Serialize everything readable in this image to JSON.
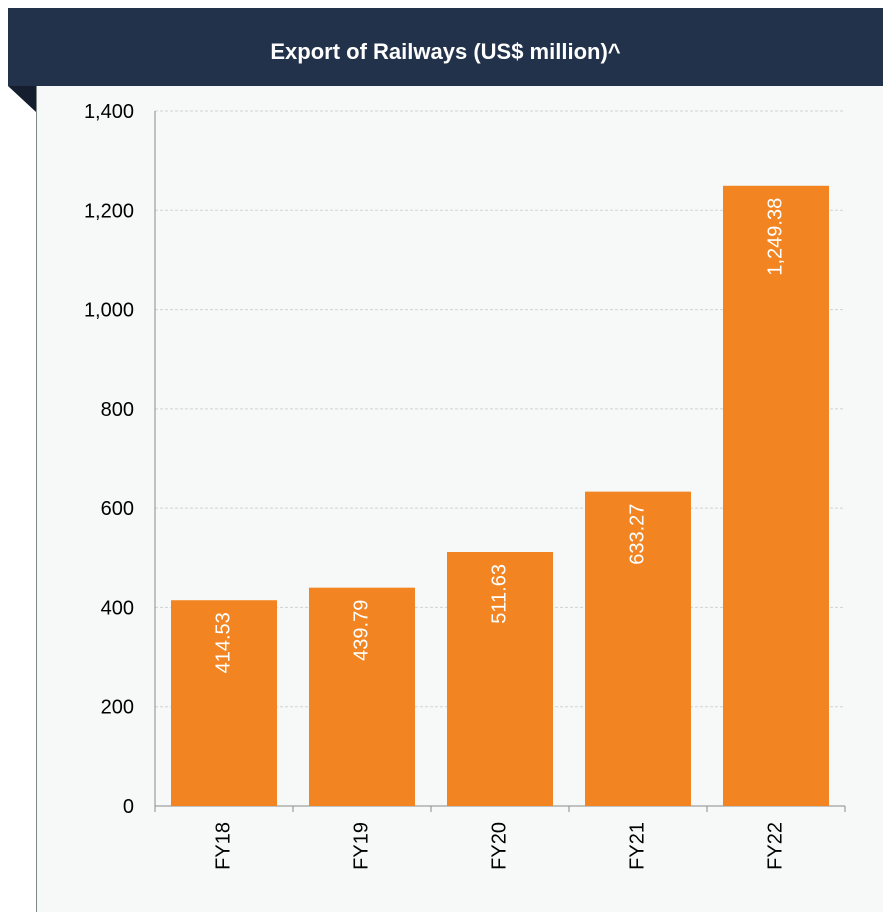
{
  "header": {
    "title": "Export of Railways (US$ million)^"
  },
  "colors": {
    "header_bg": "#22324a",
    "bar": "#f28522",
    "panel_bg": "#f6f9f8",
    "grid": "#cfd4d2"
  },
  "chart_data": {
    "type": "bar",
    "title": "Export of Railways (US$ million)^",
    "xlabel": "",
    "ylabel": "",
    "categories": [
      "FY18",
      "FY19",
      "FY20",
      "FY21",
      "FY22"
    ],
    "values": [
      414.53,
      439.79,
      511.63,
      633.27,
      1249.38
    ],
    "value_labels": [
      "414.53",
      "439.79",
      "511.63",
      "633.27",
      "1,249.38"
    ],
    "ylim": [
      0,
      1400
    ],
    "yticks": [
      0,
      200,
      400,
      600,
      800,
      1000,
      1200,
      1400
    ],
    "ytick_labels": [
      "0",
      "200",
      "400",
      "600",
      "800",
      "1,000",
      "1,200",
      "1,400"
    ],
    "grid": true,
    "legend": false
  }
}
